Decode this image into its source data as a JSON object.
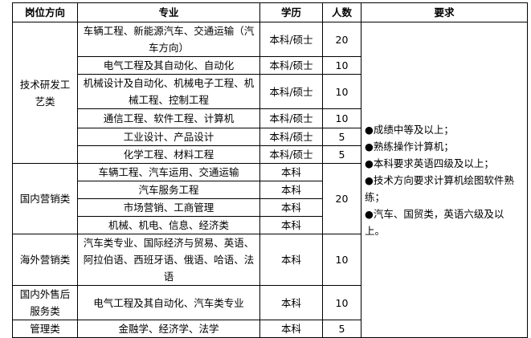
{
  "headers": {
    "direction": "岗位方向",
    "major": "专业",
    "degree": "学历",
    "count": "人数",
    "requirements": "要求"
  },
  "groups": [
    {
      "direction": "技术研发工艺类",
      "rows": [
        {
          "major": "车辆工程、新能源汽车、交通运输（汽车方向）",
          "degree": "本科/硕士",
          "count": "20"
        },
        {
          "major": "电气工程及其自动化、自动化",
          "degree": "本科/硕士",
          "count": "10"
        },
        {
          "major": "机械设计及自动化、机械电子工程、机械工程、控制工程",
          "degree": "本科/硕士",
          "count": "10"
        },
        {
          "major": "通信工程、软件工程、计算机",
          "degree": "本科/硕士",
          "count": "10"
        },
        {
          "major": "工业设计、产品设计",
          "degree": "本科/硕士",
          "count": "5"
        },
        {
          "major": "化学工程、材料工程",
          "degree": "本科/硕士",
          "count": "5"
        }
      ]
    },
    {
      "direction": "国内营销类",
      "count": "20",
      "rows": [
        {
          "major": "车辆工程、汽车运用、交通运输",
          "degree": "本科"
        },
        {
          "major": "汽车服务工程",
          "degree": "本科"
        },
        {
          "major": "市场营销、工商管理",
          "degree": "本科"
        },
        {
          "major": "机械、机电、信息、经济类",
          "degree": "本科"
        }
      ]
    },
    {
      "direction": "海外营销类",
      "rows": [
        {
          "major": "汽车类专业、国际经济与贸易、英语、阿拉伯语、西班牙语、俄语、哈语、法语",
          "degree": "本科",
          "count": "10"
        }
      ]
    },
    {
      "direction": "国内外售后服务类",
      "rows": [
        {
          "major": "电气工程及其自动化、汽车类专业",
          "degree": "本科",
          "count": "10"
        }
      ]
    },
    {
      "direction": "管理类",
      "rows": [
        {
          "major": "金融学、经济学、法学",
          "degree": "本科",
          "count": "5"
        }
      ]
    }
  ],
  "requirements": [
    "●成绩中等及以上；",
    "●熟练操作计算机；",
    "●本科要求英语四级及以上；",
    "●技术方向要求计算机绘图软件熟练；",
    "●汽车、国贸类，英语六级及以上。"
  ]
}
